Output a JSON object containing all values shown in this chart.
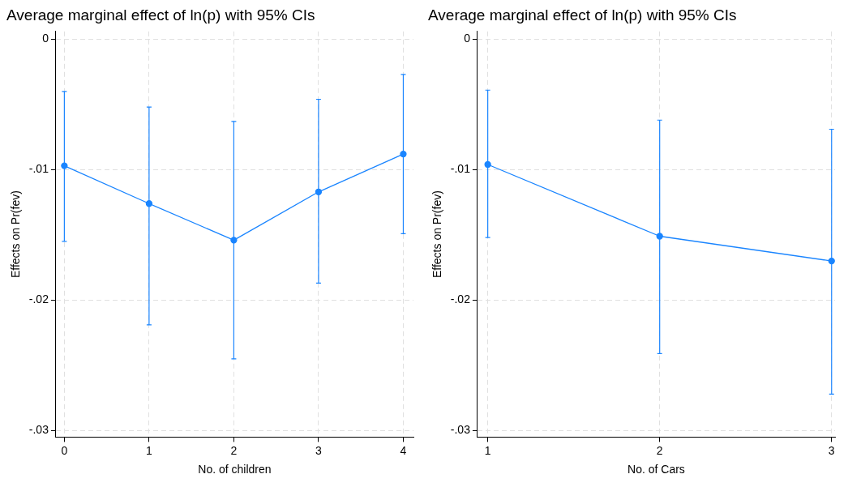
{
  "chart_data": [
    {
      "type": "line",
      "title": "Average marginal effect of ln(p) with 95% CIs",
      "xlabel": "No. of children",
      "ylabel": "Effects on Pr(fev)",
      "x": [
        0,
        1,
        2,
        3,
        4
      ],
      "series": [
        {
          "color": "#1a85ff",
          "values": [
            -0.0097,
            -0.0126,
            -0.0154,
            -0.0117,
            -0.0088
          ],
          "errors": [
            [
              -0.0155,
              -0.004
            ],
            [
              -0.0219,
              -0.0052
            ],
            [
              -0.0245,
              -0.0063
            ],
            [
              -0.0187,
              -0.0046
            ],
            [
              -0.0149,
              -0.0027
            ]
          ]
        }
      ],
      "xlim": [
        -0.1,
        4.12
      ],
      "xticks": [
        0,
        1,
        2,
        3,
        4
      ],
      "ylim": [
        -0.0305,
        0.0006
      ],
      "yticks": [
        {
          "value": 0,
          "label": "0"
        },
        {
          "value": -0.01,
          "label": "-.01"
        },
        {
          "value": -0.02,
          "label": "-.02"
        },
        {
          "value": -0.03,
          "label": "-.03"
        }
      ],
      "grid": true,
      "marker": "circle",
      "line_style": "solid"
    },
    {
      "type": "line",
      "title": "Average marginal effect of ln(p) with 95% CIs",
      "xlabel": "No. of Cars",
      "ylabel": "Effects on Pr(fev)",
      "x": [
        1,
        2,
        3
      ],
      "series": [
        {
          "color": "#1a85ff",
          "values": [
            -0.0096,
            -0.0151,
            -0.017
          ],
          "errors": [
            [
              -0.0152,
              -0.0039
            ],
            [
              -0.0241,
              -0.0062
            ],
            [
              -0.0272,
              -0.0069
            ]
          ]
        }
      ],
      "xlim": [
        0.94,
        3.02
      ],
      "xticks": [
        1,
        2,
        3
      ],
      "ylim": [
        -0.0305,
        0.0006
      ],
      "yticks": [
        {
          "value": 0,
          "label": "0"
        },
        {
          "value": -0.01,
          "label": "-.01"
        },
        {
          "value": -0.02,
          "label": "-.02"
        },
        {
          "value": -0.03,
          "label": "-.03"
        }
      ],
      "grid": true,
      "marker": "circle",
      "line_style": "solid"
    }
  ]
}
